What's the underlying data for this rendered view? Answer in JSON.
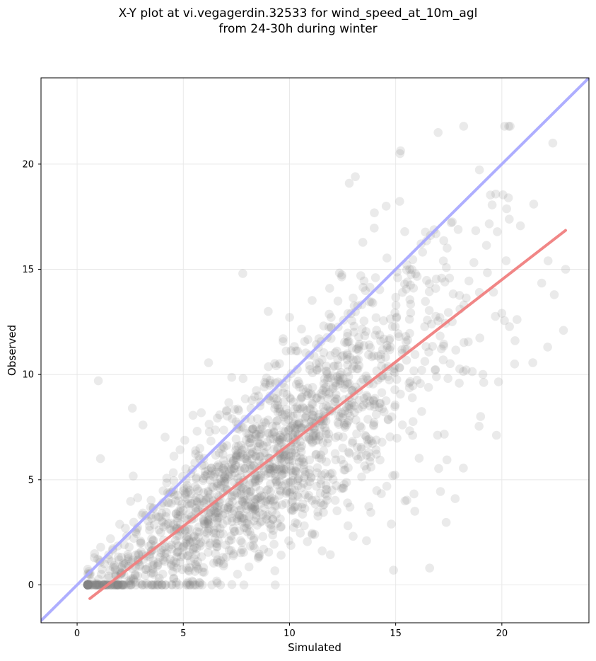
{
  "chart_data": {
    "type": "scatter",
    "title_line1": "X-Y plot at vi.vegagerdin.32533 for wind_speed_at_10m_agl",
    "title_line2": "from 24-30h during winter",
    "xlabel": "Simulated",
    "ylabel": "Observed",
    "xlim": [
      -1.7,
      24.1
    ],
    "ylim": [
      -1.8,
      24.1
    ],
    "xticks": [
      0,
      5,
      10,
      15,
      20
    ],
    "yticks": [
      0,
      5,
      10,
      15,
      20
    ],
    "grid": true,
    "point_color": "#808080",
    "identity_line": {
      "color": "#aaaaff",
      "x": [
        -1.7,
        24.1
      ],
      "y": [
        -1.7,
        24.1
      ]
    },
    "fit_line": {
      "color": "#f08080",
      "x": [
        0.6,
        23.0
      ],
      "y": [
        -0.65,
        16.85
      ]
    },
    "scatter_summary": {
      "count": 1800,
      "x_range": [
        0.5,
        23.0
      ],
      "y_range": [
        0.0,
        21.8
      ],
      "notable_points": [
        [
          1.0,
          9.7
        ],
        [
          1.1,
          6.0
        ],
        [
          2.6,
          8.4
        ],
        [
          3.1,
          7.6
        ],
        [
          7.8,
          14.8
        ],
        [
          9.0,
          13.0
        ],
        [
          15.2,
          20.5
        ],
        [
          17.0,
          21.5
        ],
        [
          18.2,
          21.8
        ],
        [
          22.4,
          21.0
        ],
        [
          16.6,
          0.8
        ],
        [
          14.9,
          0.7
        ],
        [
          23.0,
          15.0
        ],
        [
          22.9,
          12.1
        ],
        [
          13.1,
          19.4
        ],
        [
          21.5,
          18.1
        ],
        [
          20.6,
          10.5
        ],
        [
          17.8,
          4.1
        ],
        [
          19.0,
          8.0
        ],
        [
          15.9,
          3.5
        ]
      ]
    }
  }
}
